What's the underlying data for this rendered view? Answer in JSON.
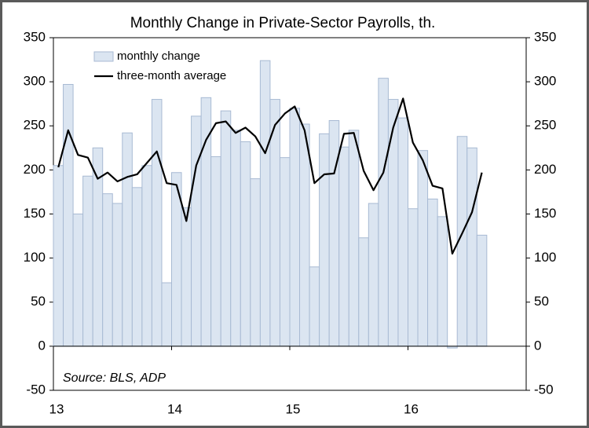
{
  "chart_data": {
    "type": "bar_line",
    "title": "Monthly Change in Private-Sector Payrolls, th.",
    "annotation": "Source: BLS, ADP",
    "categories": [
      "13",
      null,
      null,
      null,
      null,
      null,
      null,
      null,
      null,
      null,
      null,
      null,
      "14",
      null,
      null,
      null,
      null,
      null,
      null,
      null,
      null,
      null,
      null,
      null,
      "15",
      null,
      null,
      null,
      null,
      null,
      null,
      null,
      null,
      null,
      null,
      null,
      "16",
      null,
      null,
      null,
      null,
      null,
      null,
      null
    ],
    "series": [
      {
        "name": "monthly change",
        "kind": "bar",
        "color": "#dbe5f1",
        "values": [
          205,
          297,
          150,
          193,
          225,
          173,
          162,
          242,
          180,
          205,
          280,
          72,
          197,
          157,
          261,
          282,
          215,
          267,
          245,
          232,
          190,
          324,
          280,
          214,
          270,
          252,
          90,
          241,
          256,
          226,
          245,
          123,
          162,
          304,
          280,
          259,
          156,
          222,
          167,
          147,
          -2,
          238,
          225,
          126
        ]
      },
      {
        "name": "three-month average",
        "kind": "line",
        "color": "#000000",
        "values": [
          203,
          245,
          217,
          214,
          190,
          197,
          187,
          192,
          195,
          208,
          221,
          185,
          183,
          142,
          205,
          234,
          253,
          255,
          242,
          248,
          238,
          219,
          251,
          264,
          272,
          245,
          185,
          195,
          196,
          241,
          242,
          199,
          177,
          197,
          248,
          281,
          231,
          211,
          182,
          179,
          105,
          128,
          152,
          197
        ]
      }
    ],
    "ylim": [
      -50,
      350
    ],
    "yticks": [
      -50,
      0,
      50,
      100,
      150,
      200,
      250,
      300,
      350
    ],
    "y2lim": [
      -50,
      350
    ],
    "y2ticks": [
      -50,
      0,
      50,
      100,
      150,
      200,
      250,
      300,
      350
    ],
    "legend": "upper left"
  }
}
